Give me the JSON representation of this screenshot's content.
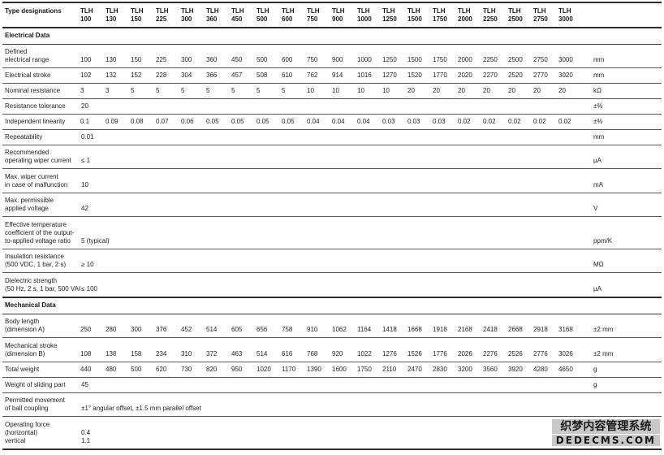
{
  "watermark": {
    "line1": "织梦内容管理系统",
    "line2": "DEDECMS.COM"
  },
  "table": {
    "corner_label": "Type designations",
    "models": [
      "TLH 100",
      "TLH 130",
      "TLH 150",
      "TLH 225",
      "TLH 300",
      "TLH 360",
      "TLH 450",
      "TLH 500",
      "TLH 600",
      "TLH 750",
      "TLH 900",
      "TLH 1000",
      "TLH 1250",
      "TLH 1500",
      "TLH 1750",
      "TLH 2000",
      "TLH 2250",
      "TLH 2500",
      "TLH 2750",
      "TLH 3000"
    ],
    "sections": [
      {
        "title": "Electrical Data",
        "rows": [
          {
            "label_lines": [
              "Defined",
              "electrical range"
            ],
            "values": [
              "100",
              "130",
              "150",
              "225",
              "300",
              "360",
              "450",
              "500",
              "600",
              "750",
              "900",
              "1000",
              "1250",
              "1500",
              "1750",
              "2000",
              "2250",
              "2500",
              "2750",
              "3000"
            ],
            "unit": "mm"
          },
          {
            "label_lines": [
              "Electrical stroke"
            ],
            "values": [
              "102",
              "132",
              "152",
              "228",
              "304",
              "366",
              "457",
              "508",
              "610",
              "762",
              "914",
              "1016",
              "1270",
              "1520",
              "1770",
              "2020",
              "2270",
              "2520",
              "2770",
              "3020"
            ],
            "unit": "mm"
          },
          {
            "label_lines": [
              "Nominal resistance"
            ],
            "values": [
              "3",
              "3",
              "5",
              "5",
              "5",
              "5",
              "5",
              "5",
              "5",
              "10",
              "10",
              "10",
              "10",
              "20",
              "20",
              "20",
              "20",
              "20",
              "20",
              "20"
            ],
            "unit": "kΩ"
          },
          {
            "label_lines": [
              "Resistance tolerance"
            ],
            "value": "20",
            "unit": "±%"
          },
          {
            "label_lines": [
              "Independent linearity"
            ],
            "values": [
              "0.1",
              "0.09",
              "0.08",
              "0.07",
              "0.06",
              "0.05",
              "0.05",
              "0.05",
              "0.05",
              "0.04",
              "0.04",
              "0.04",
              "0.03",
              "0.03",
              "0.03",
              "0.02",
              "0.02",
              "0.02",
              "0.02",
              "0.02"
            ],
            "unit": "±%"
          },
          {
            "label_lines": [
              "Repeatability"
            ],
            "value": "0.01",
            "unit": "mm"
          },
          {
            "label_lines": [
              "Recommended",
              "operating wiper current"
            ],
            "value": "≤ 1",
            "unit": "µA"
          },
          {
            "label_lines": [
              "Max. wiper current",
              "in case of malfunction"
            ],
            "value": "10",
            "unit": "mA"
          },
          {
            "label_lines": [
              "Max. permissible",
              "applied voltage"
            ],
            "value": "42",
            "unit": "V"
          },
          {
            "label_lines": [
              "Effective temperature",
              "coefficient of the output-",
              "to-applied voltage ratio"
            ],
            "value": "5 (typical)",
            "unit": "ppm/K"
          },
          {
            "label_lines": [
              "Insulation resistance",
              "(500 VDC, 1 bar, 2 s)"
            ],
            "value": "≥ 10",
            "unit": "MΩ"
          },
          {
            "label_lines": [
              "Dielectric strength",
              "(50 Hz, 2 s, 1 bar, 500 VAC)"
            ],
            "value": "≤ 100",
            "unit": "µA"
          }
        ]
      },
      {
        "title": "Mechanical Data",
        "rows": [
          {
            "label_lines": [
              "Body length",
              "(dimension A)"
            ],
            "values": [
              "250",
              "280",
              "300",
              "376",
              "452",
              "514",
              "605",
              "656",
              "758",
              "910",
              "1062",
              "1164",
              "1418",
              "1668",
              "1918",
              "2168",
              "2418",
              "2668",
              "2918",
              "3168"
            ],
            "unit": "±2 mm"
          },
          {
            "label_lines": [
              "Mechanical stroke",
              "(dimension B)"
            ],
            "values": [
              "108",
              "138",
              "158",
              "234",
              "310",
              "372",
              "463",
              "514",
              "616",
              "768",
              "920",
              "1022",
              "1276",
              "1526",
              "1776",
              "2026",
              "2276",
              "2526",
              "2776",
              "3026"
            ],
            "unit": "±2 mm"
          },
          {
            "label_lines": [
              "Total weight"
            ],
            "values": [
              "440",
              "480",
              "500",
              "620",
              "730",
              "820",
              "950",
              "1020",
              "1170",
              "1390",
              "1600",
              "1750",
              "2110",
              "2470",
              "2830",
              "3200",
              "3560",
              "3920",
              "4280",
              "4650"
            ],
            "unit": "g"
          },
          {
            "label_lines": [
              "Weight of sliding part"
            ],
            "value": "45",
            "unit": "g"
          },
          {
            "label_lines": [
              "Permitted movement",
              "of ball coupling"
            ],
            "value": "±1° angular offset,  ±1.5 mm parallel offset",
            "unit": ""
          },
          {
            "label_lines": [
              "Operating force",
              "(horizontal)",
              "vertical"
            ],
            "value_lines": [
              "0.4",
              "1.1"
            ],
            "unit": ""
          }
        ]
      }
    ]
  }
}
